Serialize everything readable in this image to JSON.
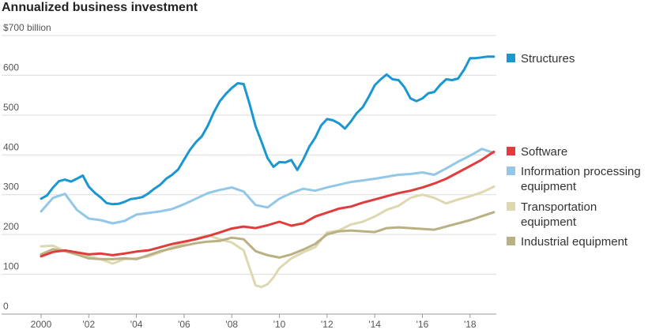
{
  "chart_data": {
    "type": "line",
    "title": "Annualized business investment",
    "ylabel": "",
    "xlabel": "",
    "ylim": [
      0,
      700
    ],
    "xlim": [
      2000,
      2019.5
    ],
    "y_ticks": [
      {
        "value": 0,
        "label": "0"
      },
      {
        "value": 100,
        "label": "100"
      },
      {
        "value": 200,
        "label": "200"
      },
      {
        "value": 300,
        "label": "300"
      },
      {
        "value": 400,
        "label": "400"
      },
      {
        "value": 500,
        "label": "500"
      },
      {
        "value": 600,
        "label": "600"
      },
      {
        "value": 700,
        "label": "$700 billion"
      }
    ],
    "x_ticks": [
      {
        "value": 2000,
        "label": "2000"
      },
      {
        "value": 2002,
        "label": "'02"
      },
      {
        "value": 2004,
        "label": "'04"
      },
      {
        "value": 2006,
        "label": "'06"
      },
      {
        "value": 2008,
        "label": "'08"
      },
      {
        "value": 2010,
        "label": "'10"
      },
      {
        "value": 2012,
        "label": "'12"
      },
      {
        "value": 2014,
        "label": "'14"
      },
      {
        "value": 2016,
        "label": "'16"
      },
      {
        "value": 2018,
        "label": "'18"
      }
    ],
    "grid": true,
    "legend_placement": "right",
    "series": [
      {
        "name": "Structures",
        "color": "#1a96d0",
        "x": [
          2000.0,
          2000.25,
          2000.5,
          2000.75,
          2001.0,
          2001.25,
          2001.5,
          2001.75,
          2002.0,
          2002.25,
          2002.5,
          2002.75,
          2003.0,
          2003.25,
          2003.5,
          2003.75,
          2004.0,
          2004.25,
          2004.5,
          2004.75,
          2005.0,
          2005.25,
          2005.5,
          2005.75,
          2006.0,
          2006.25,
          2006.5,
          2006.75,
          2007.0,
          2007.25,
          2007.5,
          2007.75,
          2008.0,
          2008.25,
          2008.5,
          2008.75,
          2009.0,
          2009.25,
          2009.5,
          2009.75,
          2010.0,
          2010.25,
          2010.5,
          2010.75,
          2011.0,
          2011.25,
          2011.5,
          2011.75,
          2012.0,
          2012.25,
          2012.5,
          2012.75,
          2013.0,
          2013.25,
          2013.5,
          2013.75,
          2014.0,
          2014.25,
          2014.5,
          2014.75,
          2015.0,
          2015.25,
          2015.5,
          2015.75,
          2016.0,
          2016.25,
          2016.5,
          2016.75,
          2017.0,
          2017.25,
          2017.5,
          2017.75,
          2018.0,
          2018.25,
          2018.5,
          2018.75,
          2019.0
        ],
        "values": [
          290,
          298,
          318,
          334,
          338,
          333,
          340,
          348,
          320,
          305,
          293,
          279,
          276,
          277,
          282,
          289,
          291,
          294,
          303,
          315,
          325,
          340,
          350,
          363,
          388,
          413,
          432,
          447,
          474,
          507,
          535,
          553,
          568,
          580,
          578,
          528,
          472,
          433,
          392,
          370,
          382,
          381,
          387,
          362,
          388,
          420,
          443,
          474,
          490,
          487,
          479,
          466,
          484,
          505,
          520,
          546,
          575,
          590,
          602,
          590,
          588,
          570,
          542,
          535,
          542,
          555,
          558,
          576,
          590,
          588,
          592,
          614,
          643,
          643,
          645,
          647,
          647
        ]
      },
      {
        "name": "Software",
        "color": "#e03c3c",
        "x": [
          2000,
          2000.5,
          2001,
          2001.5,
          2002,
          2002.5,
          2003,
          2003.5,
          2004,
          2004.5,
          2005,
          2005.5,
          2006,
          2006.5,
          2007,
          2007.5,
          2008,
          2008.5,
          2009,
          2009.5,
          2010,
          2010.5,
          2011,
          2011.5,
          2012,
          2012.5,
          2013,
          2013.5,
          2014,
          2014.5,
          2015,
          2015.5,
          2016,
          2016.5,
          2017,
          2017.5,
          2018,
          2018.5,
          2019
        ],
        "values": [
          145,
          156,
          160,
          155,
          150,
          152,
          148,
          152,
          157,
          160,
          168,
          176,
          182,
          188,
          196,
          205,
          215,
          220,
          216,
          223,
          232,
          222,
          228,
          245,
          255,
          265,
          270,
          280,
          288,
          296,
          304,
          310,
          318,
          328,
          340,
          356,
          372,
          388,
          408
        ]
      },
      {
        "name": "Information processing equipment",
        "color": "#92c7e8",
        "x": [
          2000,
          2000.5,
          2001,
          2001.5,
          2002,
          2002.5,
          2003,
          2003.5,
          2004,
          2004.5,
          2005,
          2005.5,
          2006,
          2006.5,
          2007,
          2007.5,
          2008,
          2008.5,
          2009,
          2009.5,
          2010,
          2010.5,
          2011,
          2011.5,
          2012,
          2012.5,
          2013,
          2013.5,
          2014,
          2014.5,
          2015,
          2015.5,
          2016,
          2016.5,
          2017,
          2017.5,
          2018,
          2018.5,
          2019
        ],
        "values": [
          258,
          292,
          302,
          262,
          240,
          236,
          228,
          234,
          250,
          254,
          258,
          264,
          276,
          290,
          304,
          312,
          318,
          308,
          274,
          268,
          290,
          304,
          315,
          310,
          318,
          325,
          332,
          336,
          340,
          345,
          350,
          352,
          356,
          350,
          366,
          383,
          398,
          415,
          405
        ]
      },
      {
        "name": "Transportation equipment",
        "color": "#ddd8b0",
        "x": [
          2000,
          2000.5,
          2001,
          2001.5,
          2002,
          2002.5,
          2003,
          2003.5,
          2004,
          2004.5,
          2005,
          2005.5,
          2006,
          2006.5,
          2007,
          2007.5,
          2008,
          2008.5,
          2009,
          2009.25,
          2009.5,
          2009.75,
          2010,
          2010.5,
          2011,
          2011.5,
          2012,
          2012.5,
          2013,
          2013.5,
          2014,
          2014.5,
          2015,
          2015.5,
          2016,
          2016.5,
          2017,
          2017.5,
          2018,
          2018.5,
          2019
        ],
        "values": [
          170,
          172,
          158,
          150,
          145,
          138,
          127,
          138,
          140,
          145,
          155,
          168,
          178,
          190,
          198,
          188,
          180,
          160,
          72,
          68,
          75,
          92,
          115,
          140,
          155,
          168,
          205,
          210,
          225,
          232,
          245,
          262,
          272,
          292,
          300,
          292,
          278,
          288,
          296,
          306,
          320
        ]
      },
      {
        "name": "Industrial equipment",
        "color": "#b9b084",
        "x": [
          2000,
          2000.5,
          2001,
          2001.5,
          2002,
          2002.5,
          2003,
          2003.5,
          2004,
          2004.5,
          2005,
          2005.5,
          2006,
          2006.5,
          2007,
          2007.5,
          2008,
          2008.5,
          2009,
          2009.5,
          2010,
          2010.5,
          2011,
          2011.5,
          2012,
          2012.5,
          2013,
          2013.5,
          2014,
          2014.5,
          2015,
          2015.5,
          2016,
          2016.5,
          2017,
          2017.5,
          2018,
          2018.5,
          2019
        ],
        "values": [
          150,
          163,
          158,
          150,
          140,
          138,
          138,
          140,
          138,
          148,
          158,
          165,
          172,
          178,
          182,
          184,
          192,
          188,
          158,
          148,
          142,
          150,
          162,
          176,
          200,
          208,
          210,
          208,
          206,
          216,
          218,
          216,
          214,
          212,
          220,
          228,
          236,
          246,
          256
        ]
      }
    ]
  }
}
